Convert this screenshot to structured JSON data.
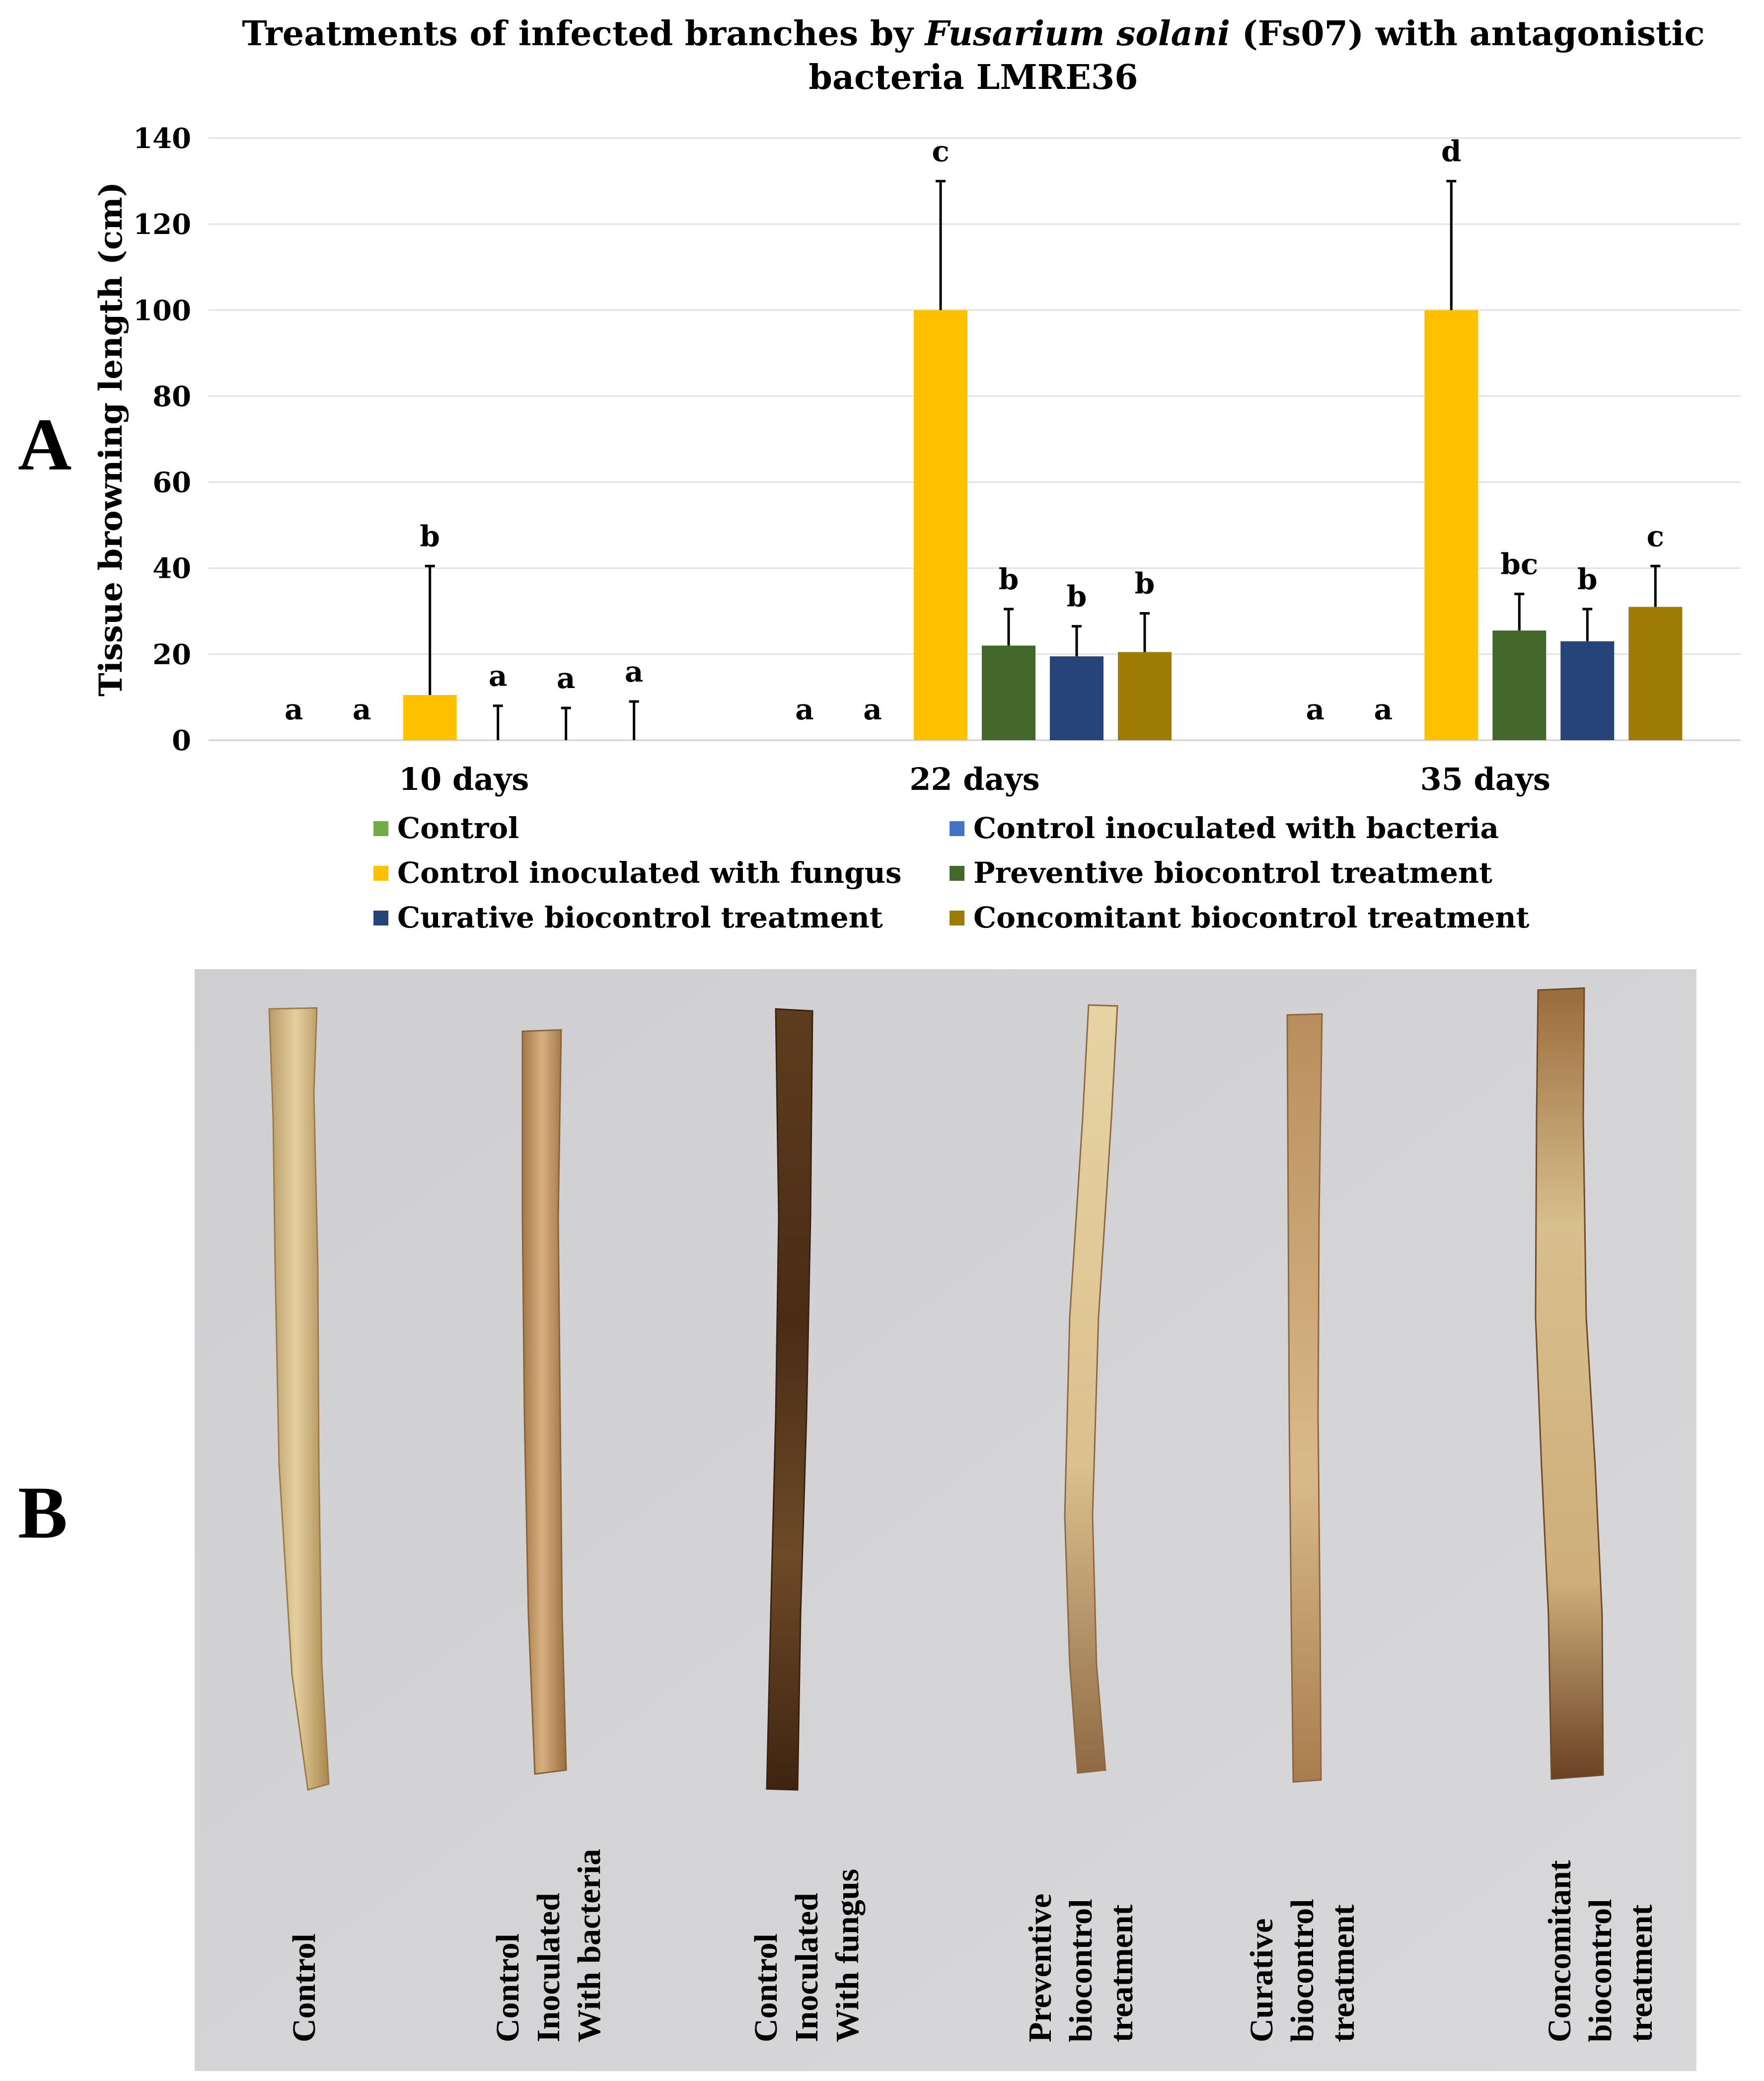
{
  "panel_labels": {
    "a": "A",
    "b": "B"
  },
  "chart_data": {
    "type": "bar",
    "title": "Treatments of infected branches by Fusarium solani (Fs07) with antagonistic bacteria LMRE36",
    "title_parts": {
      "pre": "Treatments of infected branches by ",
      "italic": "Fusarium solani",
      "post": " (Fs07) with antagonistic",
      "line2": "bacteria LMRE36"
    },
    "xlabel": "",
    "ylabel": "Tissue browning length (cm)",
    "ylim": [
      0,
      140
    ],
    "yticks": [
      0,
      20,
      40,
      60,
      80,
      100,
      120,
      140
    ],
    "grid": true,
    "legend_position": "bottom",
    "categories": [
      "10 days",
      "22 days",
      "35 days"
    ],
    "series": [
      {
        "name": "Control",
        "color": "#70ad47",
        "values": [
          0,
          0,
          0
        ],
        "errors": [
          0,
          0,
          0
        ],
        "letters": [
          "a",
          "a",
          "a"
        ]
      },
      {
        "name": "Control inoculated with bacteria",
        "color": "#4472c4",
        "values": [
          0,
          0,
          0
        ],
        "errors": [
          0,
          0,
          0
        ],
        "letters": [
          "a",
          "a",
          "a"
        ]
      },
      {
        "name": "Control inoculated with fungus",
        "color": "#ffc000",
        "values": [
          10.5,
          100,
          100
        ],
        "errors": [
          30,
          30,
          30
        ],
        "letters": [
          "b",
          "c",
          "d"
        ]
      },
      {
        "name": "Preventive biocontrol treatment",
        "color": "#43682b",
        "values": [
          0,
          22,
          25.5
        ],
        "errors": [
          8,
          8.5,
          8.5
        ],
        "letters": [
          "a",
          "b",
          "bc"
        ]
      },
      {
        "name": "Curative biocontrol treatment",
        "color": "#264478",
        "values": [
          0,
          19.5,
          23
        ],
        "errors": [
          7.5,
          7,
          7.5
        ],
        "letters": [
          "a",
          "b",
          "b"
        ]
      },
      {
        "name": "Concomitant biocontrol treatment",
        "color": "#9e7b04",
        "values": [
          0,
          20.5,
          31
        ],
        "errors": [
          9,
          9,
          9.5
        ],
        "letters": [
          "a",
          "b",
          "c"
        ]
      }
    ]
  },
  "photo_labels": [
    "Control",
    "Control\nInoculated\nWith bacteria",
    "Control\nInoculated\nWith fungus",
    "Preventive\nbiocontrol\ntreatment",
    "Curative\nbiocontrol\ntreatment",
    "Concomitant\nbiocontrol\ntreatment"
  ]
}
